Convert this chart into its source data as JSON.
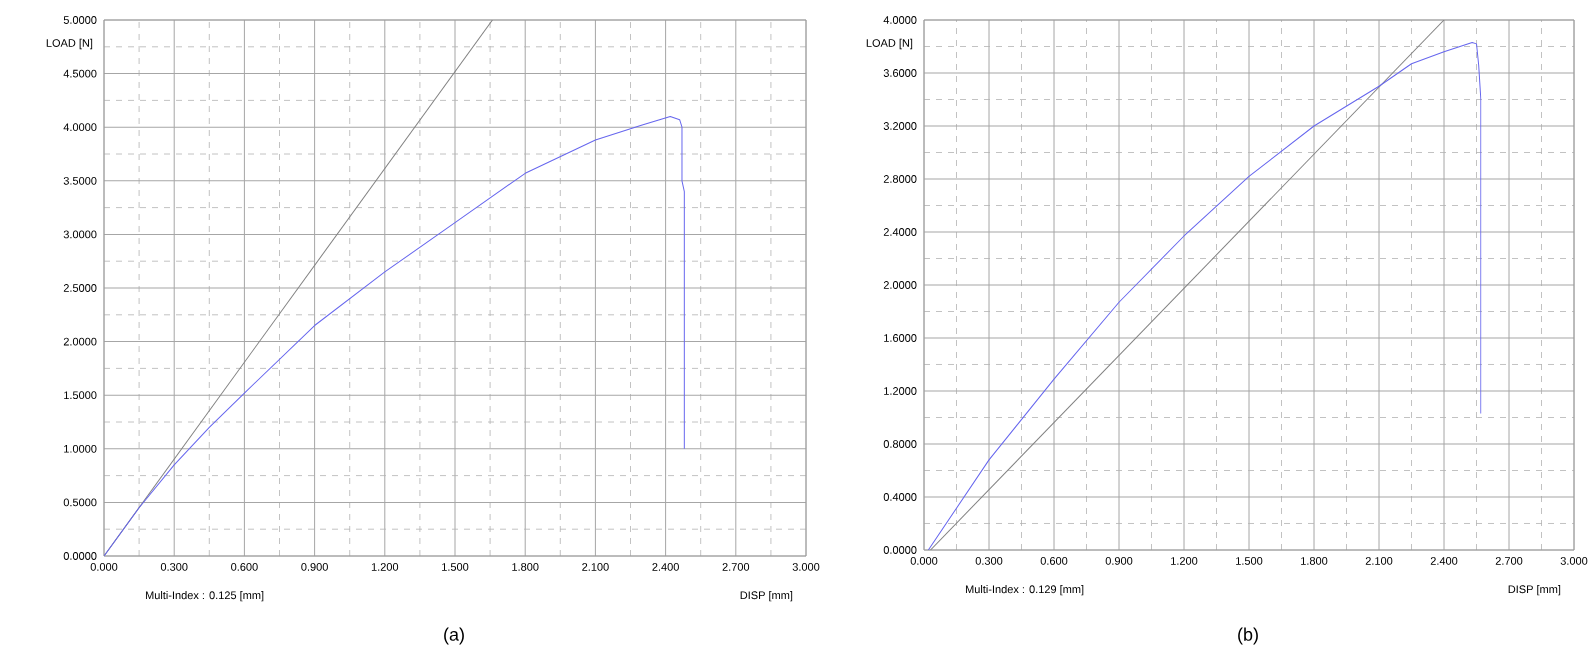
{
  "chart_data": [
    {
      "type": "line",
      "title": "(a)",
      "xlabel": "DISP [mm]",
      "ylabel": "LOAD [N]",
      "annotations": [
        "Multi-Index : 0.125 [mm]"
      ],
      "xlim": [
        0,
        3
      ],
      "ylim": [
        0,
        5
      ],
      "xticks": [
        {
          "value": 0,
          "label": "0.000"
        },
        {
          "value": 0.3,
          "label": "0.300"
        },
        {
          "value": 0.6,
          "label": "0.600"
        },
        {
          "value": 0.9,
          "label": "0.900"
        },
        {
          "value": 1.2,
          "label": "1.200"
        },
        {
          "value": 1.5,
          "label": "1.500"
        },
        {
          "value": 1.8,
          "label": "1.800"
        },
        {
          "value": 2.1,
          "label": "2.100"
        },
        {
          "value": 2.4,
          "label": "2.400"
        },
        {
          "value": 2.7,
          "label": "2.700"
        },
        {
          "value": 3,
          "label": "3.000"
        }
      ],
      "yticks": [
        {
          "value": 0,
          "label": "0.0000"
        },
        {
          "value": 0.5,
          "label": "0.5000"
        },
        {
          "value": 1,
          "label": "1.0000"
        },
        {
          "value": 1.5,
          "label": "1.5000"
        },
        {
          "value": 2,
          "label": "2.0000"
        },
        {
          "value": 2.5,
          "label": "2.5000"
        },
        {
          "value": 3,
          "label": "3.0000"
        },
        {
          "value": 3.5,
          "label": "3.5000"
        },
        {
          "value": 4,
          "label": "4.0000"
        },
        {
          "value": 4.5,
          "label": "4.5000"
        },
        {
          "value": 5,
          "label": "5.0000"
        }
      ],
      "grid": true,
      "series": [
        {
          "color": "#808080",
          "x": [
            0,
            1.66
          ],
          "values": [
            0,
            5
          ]
        },
        {
          "color": "#6666ee",
          "x": [
            0,
            0.15,
            0.3,
            0.45,
            0.6,
            0.9,
            1.2,
            1.5,
            1.8,
            2.1,
            2.3,
            2.42,
            2.46,
            2.47,
            2.47,
            2.48,
            2.48
          ],
          "values": [
            0,
            0.45,
            0.85,
            1.2,
            1.52,
            2.15,
            2.65,
            3.11,
            3.57,
            3.88,
            4.02,
            4.1,
            4.07,
            4.0,
            3.5,
            3.4,
            1.0
          ]
        }
      ]
    },
    {
      "type": "line",
      "title": "(b)",
      "xlabel": "DISP [mm]",
      "ylabel": "LOAD [N]",
      "annotations": [
        "Multi-Index : 0.129 [mm]"
      ],
      "xlim": [
        0,
        3
      ],
      "ylim": [
        0,
        4
      ],
      "xticks": [
        {
          "value": 0,
          "label": "0.000"
        },
        {
          "value": 0.3,
          "label": "0.300"
        },
        {
          "value": 0.6,
          "label": "0.600"
        },
        {
          "value": 0.9,
          "label": "0.900"
        },
        {
          "value": 1.2,
          "label": "1.200"
        },
        {
          "value": 1.5,
          "label": "1.500"
        },
        {
          "value": 1.8,
          "label": "1.800"
        },
        {
          "value": 2.1,
          "label": "2.100"
        },
        {
          "value": 2.4,
          "label": "2.400"
        },
        {
          "value": 2.7,
          "label": "2.700"
        },
        {
          "value": 3,
          "label": "3.000"
        }
      ],
      "yticks": [
        {
          "value": 0,
          "label": "0.0000"
        },
        {
          "value": 0.4,
          "label": "0.4000"
        },
        {
          "value": 0.8,
          "label": "0.8000"
        },
        {
          "value": 1.2,
          "label": "1.2000"
        },
        {
          "value": 1.6,
          "label": "1.6000"
        },
        {
          "value": 2,
          "label": "2.0000"
        },
        {
          "value": 2.4,
          "label": "2.4000"
        },
        {
          "value": 2.8,
          "label": "2.8000"
        },
        {
          "value": 3.2,
          "label": "3.2000"
        },
        {
          "value": 3.6,
          "label": "3.6000"
        },
        {
          "value": 4,
          "label": "4.0000"
        }
      ],
      "grid": true,
      "series": [
        {
          "color": "#808080",
          "x": [
            0.03,
            2.4
          ],
          "values": [
            0,
            4
          ]
        },
        {
          "color": "#6666ee",
          "x": [
            0.02,
            0.3,
            0.6,
            0.9,
            1.2,
            1.5,
            1.8,
            2.1,
            2.25,
            2.4,
            2.53,
            2.55,
            2.56,
            2.57,
            2.57
          ],
          "values": [
            0,
            0.68,
            1.29,
            1.87,
            2.37,
            2.82,
            3.2,
            3.5,
            3.67,
            3.76,
            3.83,
            3.82,
            3.66,
            3.4,
            1.03
          ]
        }
      ]
    }
  ]
}
